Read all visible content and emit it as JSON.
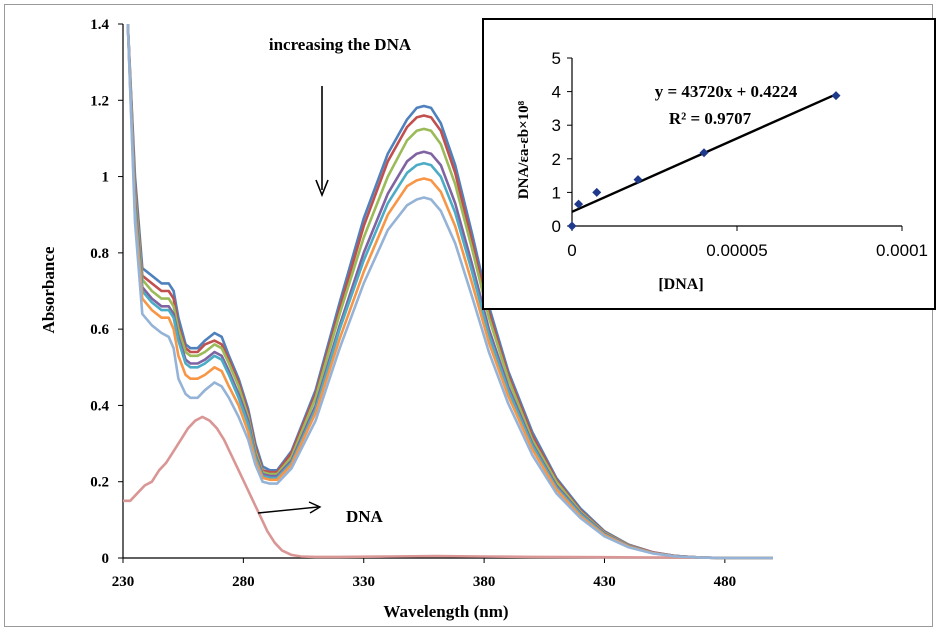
{
  "chart_data": [
    {
      "type": "line",
      "xlabel": "Wavelength (nm)",
      "ylabel": "Absorbance",
      "xlim": [
        230,
        500
      ],
      "ylim": [
        0,
        1.4
      ],
      "x_ticks": [
        230,
        280,
        330,
        380,
        430,
        480
      ],
      "y_ticks": [
        0,
        0.2,
        0.4,
        0.6,
        0.8,
        1,
        1.2,
        1.4
      ],
      "annotations": {
        "increasing": "increasing the DNA",
        "dna": "DNA"
      },
      "series_colors": [
        "#4f81bd",
        "#c0504d",
        "#9bbb59",
        "#8064a2",
        "#4bacc6",
        "#f79646",
        "#95b3d7"
      ],
      "dna_color": "#d99694",
      "series": [
        {
          "x": [
            232,
            235,
            238,
            242,
            246,
            249,
            251,
            253,
            256,
            258,
            261,
            264,
            268,
            271,
            274,
            278,
            282,
            285,
            288,
            291,
            294,
            300,
            310,
            320,
            330,
            340,
            348,
            352,
            355,
            358,
            362,
            368,
            375,
            382,
            390,
            400,
            410,
            420,
            430,
            440,
            450,
            460,
            470,
            480,
            490,
            500
          ],
          "y": [
            1.4,
            1.0,
            0.76,
            0.74,
            0.72,
            0.72,
            0.7,
            0.63,
            0.56,
            0.55,
            0.55,
            0.57,
            0.59,
            0.58,
            0.53,
            0.47,
            0.39,
            0.3,
            0.24,
            0.23,
            0.23,
            0.28,
            0.44,
            0.67,
            0.89,
            1.06,
            1.15,
            1.18,
            1.185,
            1.18,
            1.14,
            1.03,
            0.85,
            0.66,
            0.49,
            0.33,
            0.21,
            0.13,
            0.07,
            0.035,
            0.015,
            0.005,
            0.001,
            0,
            0,
            0
          ]
        },
        {
          "x": [
            232,
            235,
            238,
            242,
            246,
            249,
            251,
            253,
            256,
            258,
            261,
            264,
            268,
            271,
            274,
            278,
            282,
            285,
            288,
            291,
            294,
            300,
            310,
            320,
            330,
            340,
            348,
            352,
            355,
            358,
            362,
            368,
            375,
            382,
            390,
            400,
            410,
            420,
            430,
            440,
            450,
            460,
            470,
            480,
            490,
            500
          ],
          "y": [
            1.4,
            0.98,
            0.74,
            0.72,
            0.7,
            0.7,
            0.68,
            0.61,
            0.55,
            0.54,
            0.54,
            0.56,
            0.57,
            0.56,
            0.52,
            0.46,
            0.38,
            0.29,
            0.23,
            0.225,
            0.225,
            0.275,
            0.43,
            0.655,
            0.87,
            1.04,
            1.13,
            1.155,
            1.16,
            1.155,
            1.12,
            1.01,
            0.83,
            0.645,
            0.48,
            0.32,
            0.205,
            0.125,
            0.068,
            0.034,
            0.015,
            0.005,
            0.001,
            0,
            0,
            0
          ]
        },
        {
          "x": [
            232,
            235,
            238,
            242,
            246,
            249,
            251,
            253,
            256,
            258,
            261,
            264,
            268,
            271,
            274,
            278,
            282,
            285,
            288,
            291,
            294,
            300,
            310,
            320,
            330,
            340,
            348,
            352,
            355,
            358,
            362,
            368,
            375,
            382,
            390,
            400,
            410,
            420,
            430,
            440,
            450,
            460,
            470,
            480,
            490,
            500
          ],
          "y": [
            1.4,
            0.96,
            0.73,
            0.7,
            0.68,
            0.68,
            0.66,
            0.6,
            0.54,
            0.53,
            0.53,
            0.54,
            0.56,
            0.55,
            0.51,
            0.45,
            0.37,
            0.28,
            0.225,
            0.22,
            0.22,
            0.265,
            0.42,
            0.64,
            0.84,
            1.0,
            1.095,
            1.12,
            1.125,
            1.12,
            1.085,
            0.98,
            0.81,
            0.63,
            0.47,
            0.31,
            0.2,
            0.122,
            0.066,
            0.033,
            0.014,
            0.005,
            0.001,
            0,
            0,
            0
          ]
        },
        {
          "x": [
            232,
            235,
            238,
            242,
            246,
            249,
            251,
            253,
            256,
            258,
            261,
            264,
            268,
            271,
            274,
            278,
            282,
            285,
            288,
            291,
            294,
            300,
            310,
            320,
            330,
            340,
            348,
            352,
            355,
            358,
            362,
            368,
            375,
            382,
            390,
            400,
            410,
            420,
            430,
            440,
            450,
            460,
            470,
            480,
            490,
            500
          ],
          "y": [
            1.4,
            0.94,
            0.71,
            0.68,
            0.66,
            0.66,
            0.64,
            0.58,
            0.52,
            0.51,
            0.51,
            0.52,
            0.54,
            0.53,
            0.49,
            0.43,
            0.36,
            0.27,
            0.22,
            0.215,
            0.215,
            0.255,
            0.4,
            0.61,
            0.8,
            0.955,
            1.04,
            1.06,
            1.065,
            1.06,
            1.03,
            0.93,
            0.77,
            0.6,
            0.45,
            0.3,
            0.19,
            0.118,
            0.064,
            0.032,
            0.014,
            0.005,
            0.001,
            0,
            0,
            0
          ]
        },
        {
          "x": [
            232,
            235,
            238,
            242,
            246,
            249,
            251,
            253,
            256,
            258,
            261,
            264,
            268,
            271,
            274,
            278,
            282,
            285,
            288,
            291,
            294,
            300,
            310,
            320,
            330,
            340,
            348,
            352,
            355,
            358,
            362,
            368,
            375,
            382,
            390,
            400,
            410,
            420,
            430,
            440,
            450,
            460,
            470,
            480,
            490,
            500
          ],
          "y": [
            1.4,
            0.92,
            0.7,
            0.67,
            0.65,
            0.65,
            0.63,
            0.57,
            0.51,
            0.5,
            0.5,
            0.51,
            0.53,
            0.52,
            0.48,
            0.42,
            0.35,
            0.265,
            0.215,
            0.21,
            0.21,
            0.25,
            0.39,
            0.6,
            0.78,
            0.93,
            1.01,
            1.03,
            1.035,
            1.03,
            1.0,
            0.905,
            0.75,
            0.585,
            0.44,
            0.295,
            0.185,
            0.115,
            0.062,
            0.031,
            0.013,
            0.004,
            0.001,
            0,
            0,
            0
          ]
        },
        {
          "x": [
            232,
            235,
            238,
            242,
            246,
            249,
            251,
            253,
            256,
            258,
            261,
            264,
            268,
            271,
            274,
            278,
            282,
            285,
            288,
            291,
            294,
            300,
            310,
            320,
            330,
            340,
            348,
            352,
            355,
            358,
            362,
            368,
            375,
            382,
            390,
            400,
            410,
            420,
            430,
            440,
            450,
            460,
            470,
            480,
            490,
            500
          ],
          "y": [
            1.4,
            0.9,
            0.68,
            0.65,
            0.63,
            0.63,
            0.6,
            0.53,
            0.48,
            0.47,
            0.47,
            0.48,
            0.5,
            0.49,
            0.45,
            0.4,
            0.33,
            0.255,
            0.21,
            0.205,
            0.205,
            0.245,
            0.38,
            0.575,
            0.75,
            0.9,
            0.975,
            0.99,
            0.995,
            0.99,
            0.96,
            0.87,
            0.72,
            0.565,
            0.425,
            0.285,
            0.18,
            0.11,
            0.06,
            0.03,
            0.013,
            0.004,
            0.001,
            0,
            0,
            0
          ]
        },
        {
          "x": [
            232,
            235,
            238,
            242,
            246,
            249,
            251,
            253,
            256,
            258,
            261,
            264,
            268,
            271,
            274,
            278,
            282,
            285,
            288,
            291,
            294,
            300,
            310,
            320,
            330,
            340,
            348,
            352,
            355,
            358,
            362,
            368,
            375,
            382,
            390,
            400,
            410,
            420,
            430,
            440,
            450,
            460,
            470,
            480,
            490,
            500
          ],
          "y": [
            1.4,
            0.88,
            0.64,
            0.61,
            0.59,
            0.58,
            0.55,
            0.47,
            0.43,
            0.42,
            0.42,
            0.44,
            0.46,
            0.45,
            0.42,
            0.37,
            0.31,
            0.245,
            0.2,
            0.195,
            0.195,
            0.235,
            0.36,
            0.55,
            0.72,
            0.86,
            0.925,
            0.94,
            0.945,
            0.94,
            0.91,
            0.825,
            0.685,
            0.54,
            0.405,
            0.27,
            0.17,
            0.105,
            0.057,
            0.028,
            0.012,
            0.004,
            0.001,
            0,
            0,
            0
          ]
        }
      ],
      "dna_series": {
        "x": [
          230,
          233,
          236,
          239,
          242,
          245,
          248,
          251,
          254,
          257,
          260,
          263,
          266,
          269,
          272,
          275,
          278,
          281,
          284,
          287,
          290,
          293,
          296,
          300,
          304,
          310,
          320,
          340,
          360,
          380,
          400,
          430,
          460,
          500
        ],
        "y": [
          0.15,
          0.15,
          0.17,
          0.19,
          0.2,
          0.23,
          0.25,
          0.28,
          0.31,
          0.34,
          0.36,
          0.37,
          0.36,
          0.34,
          0.31,
          0.27,
          0.23,
          0.19,
          0.15,
          0.11,
          0.07,
          0.04,
          0.02,
          0.008,
          0.004,
          0.003,
          0.003,
          0.004,
          0.005,
          0.004,
          0.003,
          0.002,
          0.001,
          0
        ]
      }
    },
    {
      "type": "scatter",
      "xlabel": "[DNA]",
      "ylabel": "DNA/εa-εb×10⁸",
      "xlim": [
        0,
        0.0001
      ],
      "ylim": [
        0,
        5
      ],
      "x_ticks": [
        0,
        5e-05,
        0.0001
      ],
      "x_tick_labels": [
        "0",
        "0.00005",
        "0.0001"
      ],
      "y_ticks": [
        0,
        1,
        2,
        3,
        4,
        5
      ],
      "points": [
        {
          "x": 0,
          "y": 0.0
        },
        {
          "x": 2e-06,
          "y": 0.65
        },
        {
          "x": 7.5e-06,
          "y": 1.0
        },
        {
          "x": 2e-05,
          "y": 1.38
        },
        {
          "x": 4e-05,
          "y": 2.18
        },
        {
          "x": 8e-05,
          "y": 3.88
        }
      ],
      "trendline": {
        "slope": 43720,
        "intercept": 0.4224,
        "x_range": [
          0,
          8e-05
        ]
      },
      "equation": "y = 43720x + 0.4224",
      "r_squared": "R² = 0.9707",
      "marker_color": "#1f3a8a"
    }
  ]
}
